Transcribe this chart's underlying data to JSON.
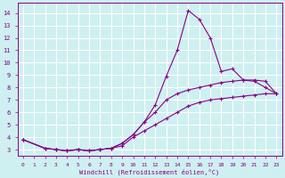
{
  "xlabel": "Windchill (Refroidissement éolien,°C)",
  "background_color": "#cef0f0",
  "line_color": "#880088",
  "grid_color": "#ffffff",
  "xlim": [
    -0.5,
    23.5
  ],
  "ylim": [
    2.5,
    14.8
  ],
  "xticks": [
    0,
    1,
    2,
    3,
    4,
    5,
    6,
    7,
    8,
    9,
    10,
    11,
    12,
    13,
    14,
    15,
    16,
    17,
    18,
    19,
    20,
    21,
    22,
    23
  ],
  "yticks": [
    3,
    4,
    5,
    6,
    7,
    8,
    9,
    10,
    11,
    12,
    13,
    14
  ],
  "series": [
    {
      "x": [
        0,
        2,
        3,
        4,
        5,
        6,
        7,
        8,
        9,
        10,
        11,
        12,
        13,
        14,
        15,
        16,
        17,
        18,
        19,
        20,
        21,
        22,
        23
      ],
      "y": [
        3.8,
        3.1,
        3.0,
        2.9,
        3.0,
        2.9,
        3.0,
        3.1,
        3.3,
        4.0,
        4.5,
        5.0,
        5.5,
        6.0,
        6.5,
        6.8,
        7.0,
        7.1,
        7.2,
        7.3,
        7.4,
        7.5,
        7.5
      ],
      "marker": true
    },
    {
      "x": [
        0,
        2,
        3,
        4,
        5,
        6,
        7,
        8,
        9,
        10,
        11,
        12,
        13,
        14,
        15,
        16,
        17,
        18,
        19,
        20,
        21,
        22,
        23
      ],
      "y": [
        3.8,
        3.1,
        3.0,
        2.9,
        3.0,
        2.9,
        3.0,
        3.1,
        3.5,
        4.2,
        5.2,
        6.0,
        7.0,
        7.5,
        7.8,
        8.0,
        8.2,
        8.4,
        8.5,
        8.6,
        8.6,
        8.5,
        7.5
      ],
      "marker": true
    },
    {
      "x": [
        0,
        2,
        3,
        4,
        5,
        6,
        7,
        8,
        9,
        10,
        11,
        12,
        13,
        14,
        15,
        16,
        17,
        18,
        19,
        20,
        21,
        22,
        23
      ],
      "y": [
        3.8,
        3.1,
        3.0,
        2.9,
        3.0,
        2.9,
        3.0,
        3.1,
        3.5,
        4.2,
        5.2,
        6.6,
        8.9,
        11.0,
        14.2,
        13.5,
        12.0,
        9.3,
        9.5,
        8.6,
        8.5,
        8.0,
        7.5
      ],
      "marker": true
    }
  ]
}
